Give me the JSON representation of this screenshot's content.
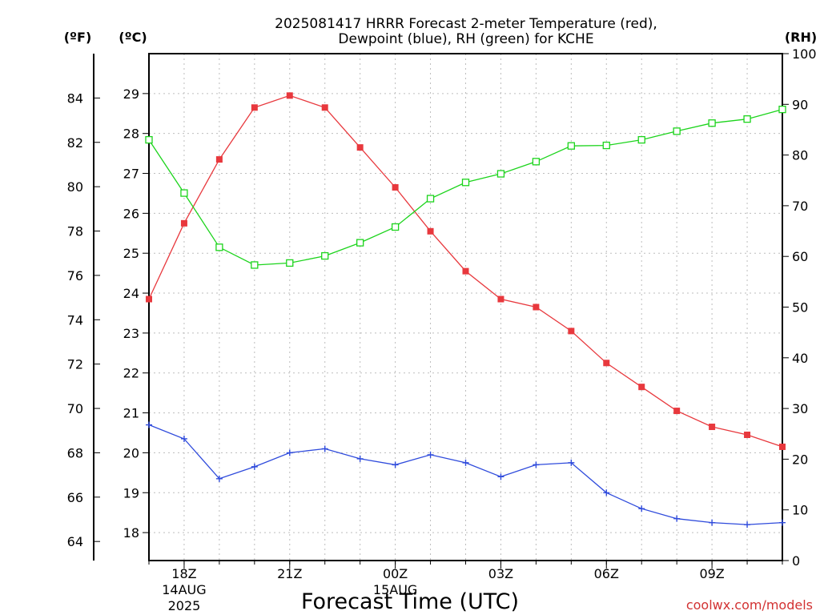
{
  "chart_data": {
    "type": "line",
    "title": [
      "2025081417 HRRR Forecast 2-meter Temperature (red),",
      "Dewpoint (blue), RH (green) for KCHE"
    ],
    "xlabel": "Forecast Time (UTC)",
    "credit": "coolwx.com/models",
    "unit_labels": {
      "fahrenheit": "(ºF)",
      "celsius": "(ºC)",
      "rh": "(RH)"
    },
    "x_ticks": [
      "18Z",
      "21Z",
      "00Z",
      "03Z",
      "06Z",
      "09Z"
    ],
    "date_labels": [
      [
        "14AUG",
        "2025"
      ],
      [
        "15AUG"
      ]
    ],
    "x_hours": [
      17,
      18,
      19,
      20,
      21,
      22,
      23,
      24,
      25,
      26,
      27,
      28,
      29,
      30,
      31,
      32,
      33,
      34,
      35
    ],
    "x_range": [
      17,
      35
    ],
    "c_range": [
      17.3,
      30.0
    ],
    "c_ticks": [
      18,
      19,
      20,
      21,
      22,
      23,
      24,
      25,
      26,
      27,
      28,
      29
    ],
    "f_ticks": [
      64,
      66,
      68,
      70,
      72,
      74,
      76,
      78,
      80,
      82,
      84
    ],
    "rh_range": [
      0,
      100
    ],
    "rh_ticks": [
      0,
      10,
      20,
      30,
      40,
      50,
      60,
      70,
      80,
      90,
      100
    ],
    "grid": true,
    "colors": {
      "temperature": "#e8383d",
      "dewpoint": "#2f4bdc",
      "rh": "#1cd41c",
      "credit": "#d23232"
    },
    "series": [
      {
        "key": "temperature",
        "axis": "celsius",
        "marker": "filled-square",
        "values": [
          23.85,
          25.75,
          27.35,
          28.65,
          28.95,
          28.65,
          27.65,
          26.65,
          25.55,
          24.55,
          23.85,
          23.65,
          23.05,
          22.25,
          21.65,
          21.05,
          20.65,
          20.45,
          20.15
        ]
      },
      {
        "key": "dewpoint",
        "axis": "celsius",
        "marker": "plus",
        "values": [
          20.7,
          20.35,
          19.35,
          19.65,
          20.0,
          20.1,
          19.85,
          19.7,
          19.95,
          19.75,
          19.4,
          19.7,
          19.75,
          19.0,
          18.6,
          18.35,
          18.25,
          18.2,
          18.25
        ]
      },
      {
        "key": "rh",
        "axis": "rh",
        "marker": "open-square",
        "values": [
          83,
          72.5,
          61.8,
          58.3,
          58.7,
          60.1,
          62.7,
          65.8,
          71.4,
          74.6,
          76.3,
          78.7,
          81.8,
          81.9,
          83.0,
          84.7,
          86.3,
          87.1,
          89.0
        ]
      }
    ]
  }
}
